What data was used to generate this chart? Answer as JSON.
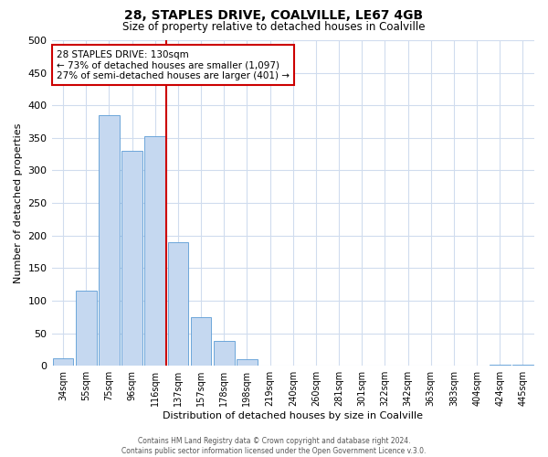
{
  "title": "28, STAPLES DRIVE, COALVILLE, LE67 4GB",
  "subtitle": "Size of property relative to detached houses in Coalville",
  "xlabel": "Distribution of detached houses by size in Coalville",
  "ylabel": "Number of detached properties",
  "bar_labels": [
    "34sqm",
    "55sqm",
    "75sqm",
    "96sqm",
    "116sqm",
    "137sqm",
    "157sqm",
    "178sqm",
    "198sqm",
    "219sqm",
    "240sqm",
    "260sqm",
    "281sqm",
    "301sqm",
    "322sqm",
    "342sqm",
    "363sqm",
    "383sqm",
    "404sqm",
    "424sqm",
    "445sqm"
  ],
  "bar_heights": [
    12,
    115,
    385,
    330,
    352,
    190,
    75,
    38,
    10,
    0,
    0,
    0,
    0,
    0,
    0,
    0,
    0,
    0,
    0,
    1,
    1
  ],
  "bar_color": "#c5d8f0",
  "bar_edge_color": "#5b9bd5",
  "marker_color": "#cc0000",
  "ylim": [
    0,
    500
  ],
  "yticks": [
    0,
    50,
    100,
    150,
    200,
    250,
    300,
    350,
    400,
    450,
    500
  ],
  "annotation_title": "28 STAPLES DRIVE: 130sqm",
  "annotation_line1": "← 73% of detached houses are smaller (1,097)",
  "annotation_line2": "27% of semi-detached houses are larger (401) →",
  "annotation_box_color": "#ffffff",
  "annotation_box_edge": "#cc0000",
  "footer_line1": "Contains HM Land Registry data © Crown copyright and database right 2024.",
  "footer_line2": "Contains public sector information licensed under the Open Government Licence v.3.0.",
  "background_color": "#ffffff",
  "grid_color": "#d0dcee"
}
